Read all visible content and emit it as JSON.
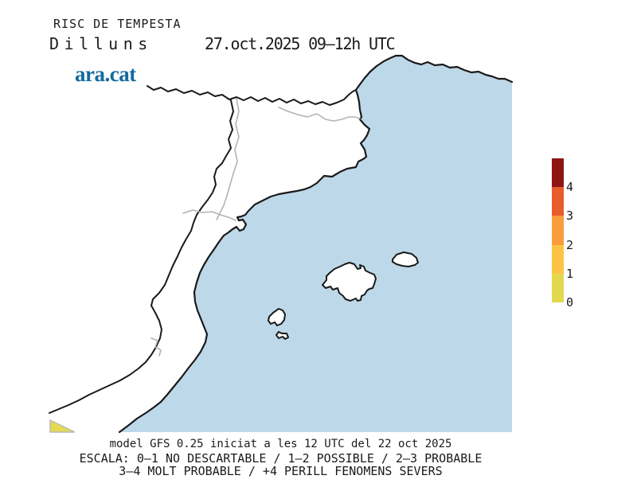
{
  "header": {
    "title": "RISC DE TEMPESTA",
    "day": "Dilluns",
    "period": "27.oct.2025 09–12h UTC",
    "logo_text": "ara.cat",
    "logo_color": "#136a9e"
  },
  "map": {
    "sea_color": "#bdd8e9",
    "land_color": "#ffffff",
    "coast_color": "#1a1a1a",
    "province_border_color": "#b3b3b3",
    "risk_area_color": "#e3da4f",
    "risk_area_edge_color": "#b9b9b9"
  },
  "legend": {
    "colors_top_to_bottom": [
      "#8e1414",
      "#e85c2b",
      "#fb9c3c",
      "#fcc445",
      "#e2d94e"
    ],
    "tick_labels_top_to_bottom": [
      "4",
      "3",
      "2",
      "1",
      "0"
    ]
  },
  "footer": {
    "model_line": "model GFS 0.25 iniciat a les 12 UTC del 22 oct 2025",
    "scale_line_1": "ESCALA: 0–1 NO DESCARTABLE / 1–2 POSSIBLE / 2–3 PROBABLE",
    "scale_line_2": "3–4 MOLT PROBABLE / +4 PERILL FENOMENS SEVERS"
  }
}
